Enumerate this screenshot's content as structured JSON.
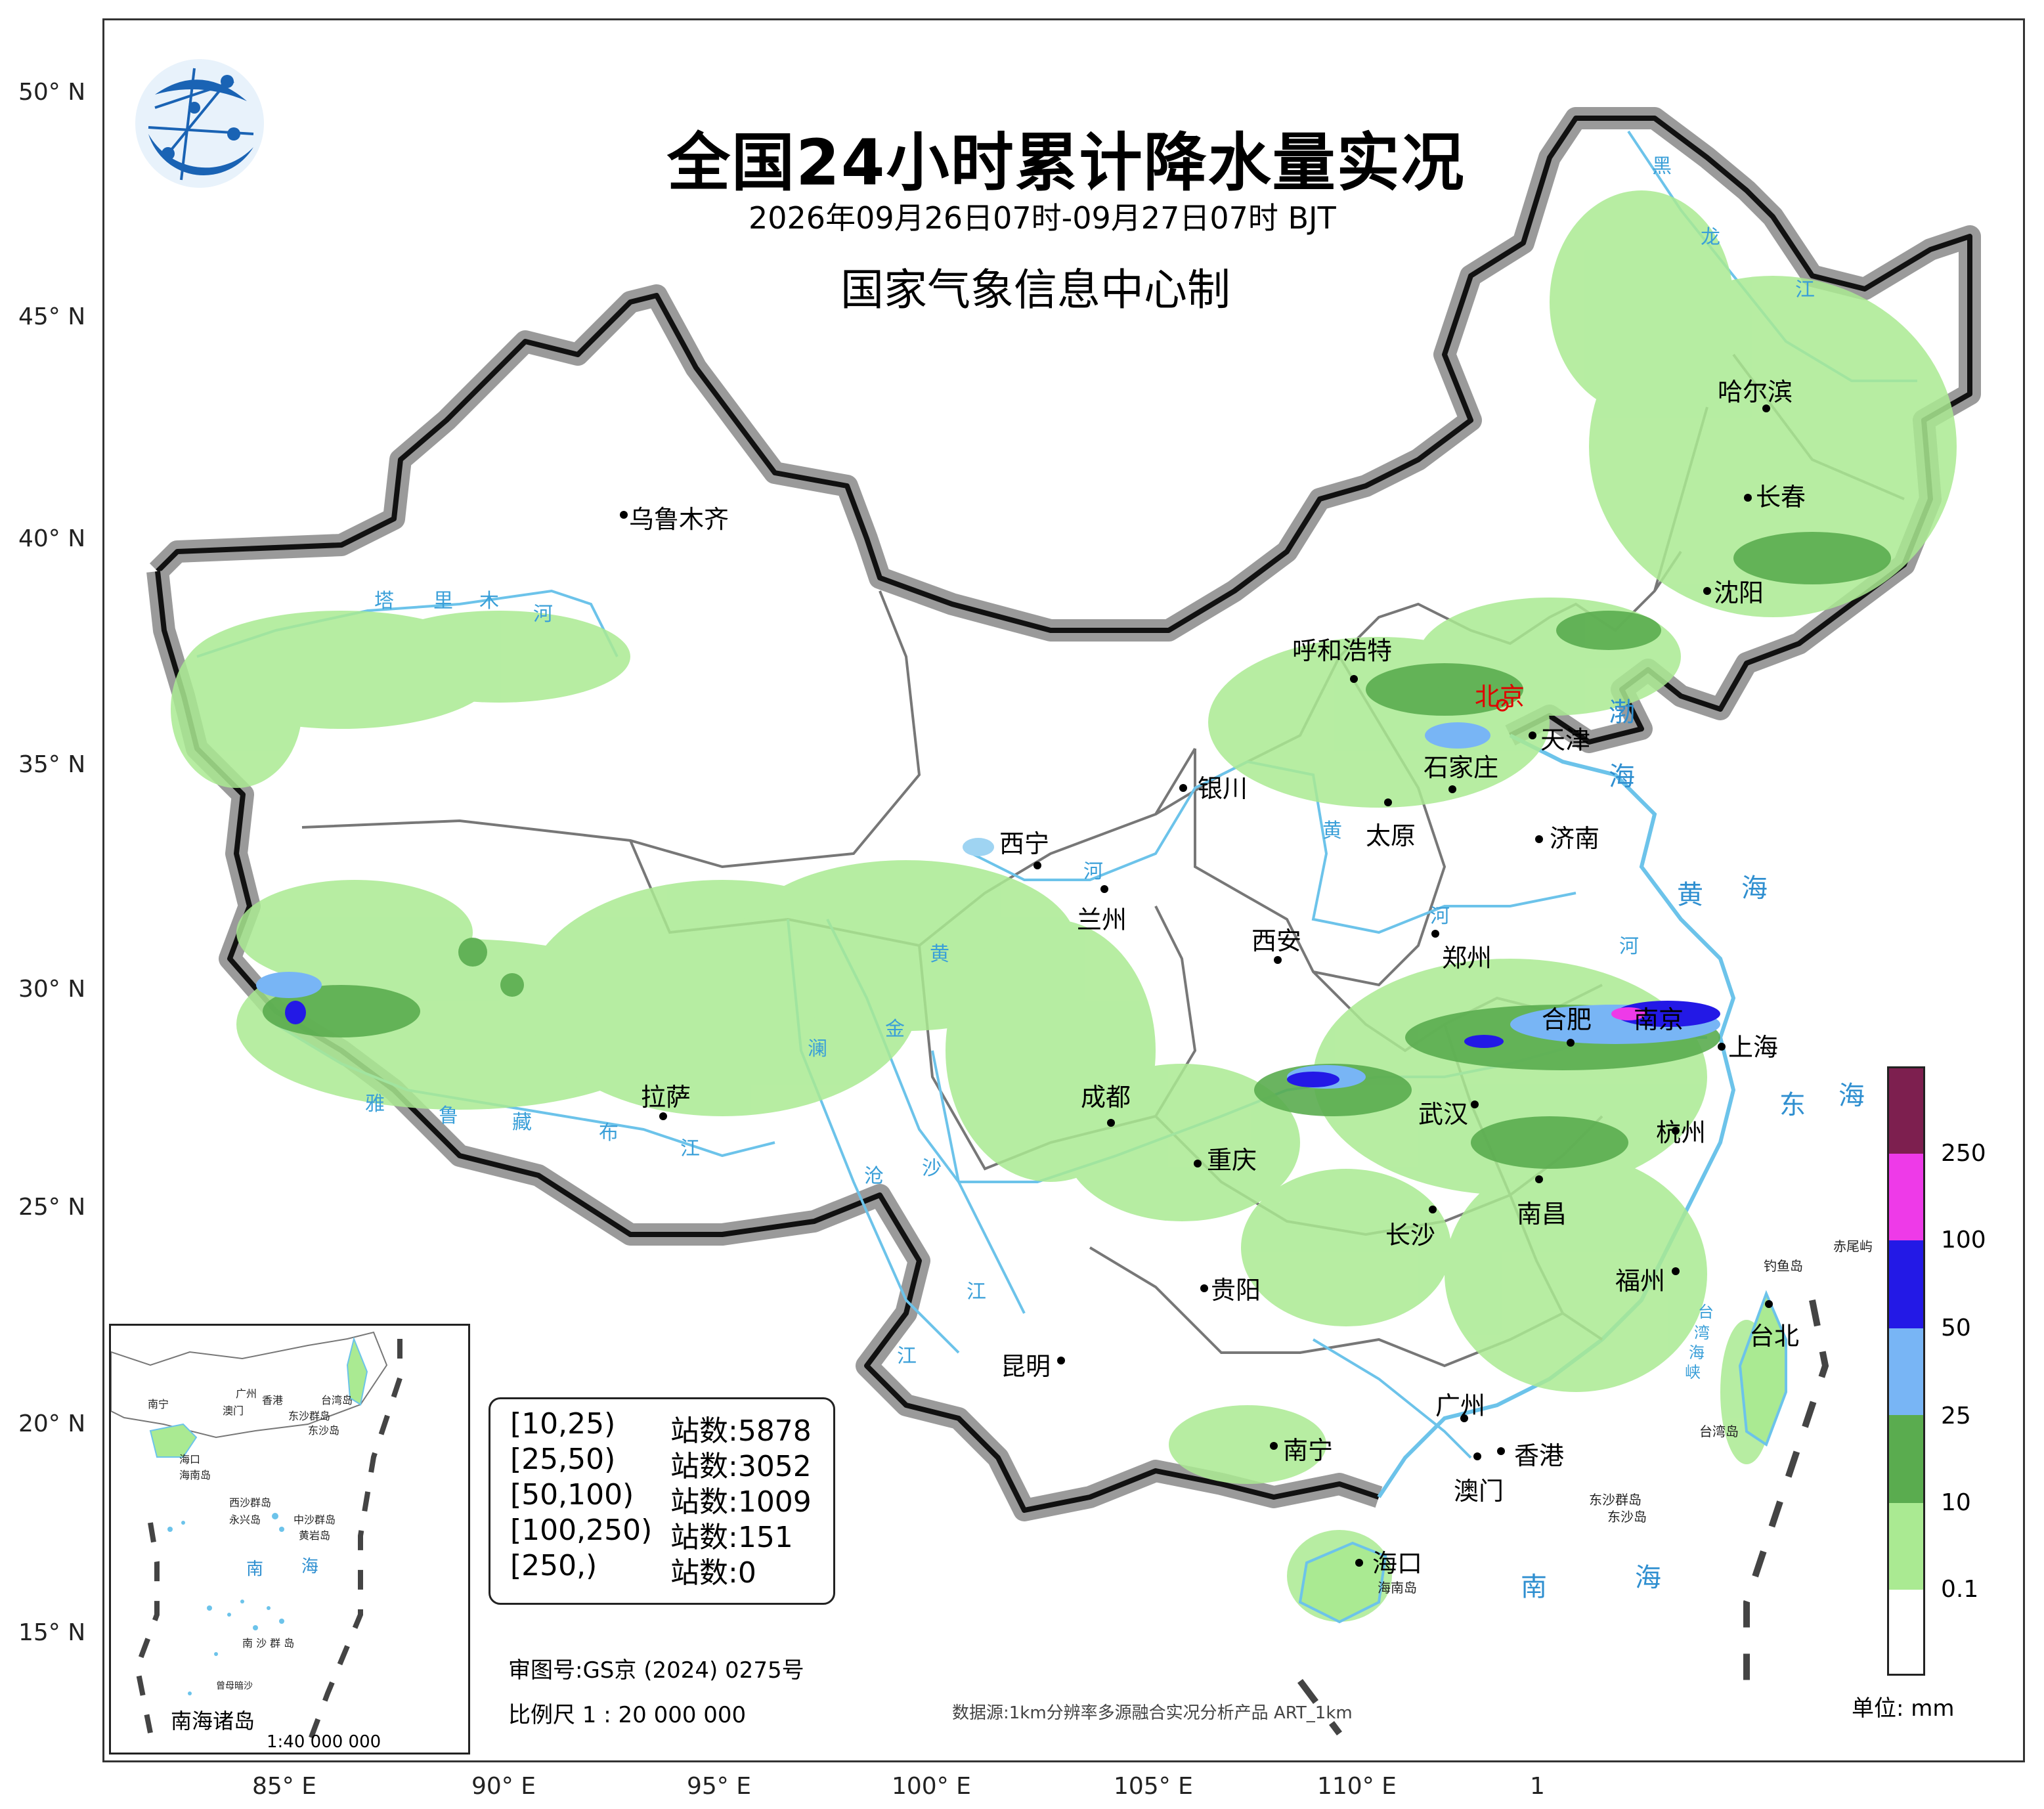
{
  "header": {
    "title": "全国24小时累计降水量实况",
    "subtitle": "2026年09月26日07时-09月27日07时 BJT",
    "maker": "国家气象信息中心制"
  },
  "lat_labels": [
    "50° N",
    "45° N",
    "40° N",
    "35° N",
    "30° N",
    "25° N",
    "20° N",
    "15° N"
  ],
  "lon_labels": [
    "85° E",
    "90° E",
    "95° E",
    "100° E",
    "105° E",
    "110° E",
    "1"
  ],
  "cities": {
    "wulumuqi": "乌鲁木齐",
    "haerbin": "哈尔滨",
    "changchun": "长春",
    "shenyang": "沈阳",
    "huhehaote": "呼和浩特",
    "beijing": "北京",
    "tianjin": "天津",
    "shijiazhuang": "石家庄",
    "yinchuan": "银川",
    "taiyuan": "太原",
    "jinan": "济南",
    "xining": "西宁",
    "lanzhou": "兰州",
    "xian": "西安",
    "zhengzhou": "郑州",
    "hefei": "合肥",
    "nanjing": "南京",
    "shanghai": "上海",
    "lasa": "拉萨",
    "chengdu": "成都",
    "wuhan": "武汉",
    "hangzhou": "杭州",
    "chongqing": "重庆",
    "nanchang": "南昌",
    "changsha": "长沙",
    "guiyang": "贵阳",
    "fuzhou": "福州",
    "taibei": "台北",
    "kunming": "昆明",
    "guangzhou": "广州",
    "nanning": "南宁",
    "xianggang": "香港",
    "aomen": "澳门",
    "haikou": "海口"
  },
  "rivers": {
    "tarim": [
      "塔",
      "里",
      "木",
      "河"
    ],
    "heilong": [
      "黑",
      "龙",
      "江"
    ],
    "yellow_1": [
      "河",
      "黄"
    ],
    "yellow_2": [
      "黄",
      "河"
    ],
    "yellow_3": "河",
    "yarlung": [
      "雅",
      "鲁",
      "藏",
      "布",
      "江"
    ],
    "lancang": [
      "澜",
      "沧",
      "江"
    ],
    "jinsha": [
      "金",
      "沙",
      "江"
    ],
    "huai": "河"
  },
  "seas": {
    "bohai": [
      "渤",
      "海"
    ],
    "huanghai": [
      "黄",
      "海"
    ],
    "donghai": [
      "东",
      "海"
    ],
    "nanhai": [
      "南",
      "海"
    ],
    "taiwan_strait": [
      "台",
      "湾",
      "海",
      "峡"
    ]
  },
  "islands": {
    "diaoyu": "钓鱼岛",
    "chiwei": "赤尾屿",
    "taiwan": "台湾岛",
    "hainan": "海南岛",
    "dongsha_1": "东沙群岛",
    "dongsha_2": "东沙岛"
  },
  "inset": {
    "title": "南海诸岛",
    "scale": "1:40 000 000",
    "labels": {
      "nanning": "南宁",
      "guangzhou": "广州",
      "xianggang": "香港",
      "aomen": "澳门",
      "taiwan": "台湾岛",
      "dongsha_q": "东沙群岛",
      "dongsha": "东沙岛",
      "haikou": "海口",
      "hainan": "海南岛",
      "xisha": "西沙群岛",
      "yongxing": "永兴岛",
      "zhongsha": "中沙群岛",
      "huangyan": "黄岩岛",
      "nan": "南",
      "hai": "海",
      "nansha": "南 沙 群 岛",
      "zengmu": "曾母暗沙"
    }
  },
  "station_legend": [
    {
      "range": "[10,25)",
      "count": "站数:5878"
    },
    {
      "range": "[25,50)",
      "count": "站数:3052"
    },
    {
      "range": "[50,100)",
      "count": "站数:1009"
    },
    {
      "range": "[100,250)",
      "count": "站数:151"
    },
    {
      "range": "[250,)",
      "count": "站数:0"
    }
  ],
  "footer": {
    "approval": "审图号:GS京 (2024) 0275号",
    "scale": "比例尺 1 : 20 000 000",
    "source": "数据源:1km分辨率多源融合实况分析产品 ART_1km"
  },
  "colorbar": {
    "labels": [
      "250",
      "100",
      "50",
      "25",
      "10",
      "0.1"
    ],
    "colors": [
      "#7d1f4f",
      "#ee3ae8",
      "#2319e6",
      "#78b5f5",
      "#5aac4f",
      "#aaea92",
      "#ffffff"
    ],
    "unit": "单位: mm"
  },
  "colors": {
    "border_gray": "#8f8f8f",
    "border_black": "#111111",
    "province": "#777777",
    "water": "#6cc3ea",
    "light_green": "#aaea92",
    "green": "#5aac4f",
    "blue": "#78b5f5",
    "dark_blue": "#2319e6",
    "magenta": "#ee3ae8"
  }
}
